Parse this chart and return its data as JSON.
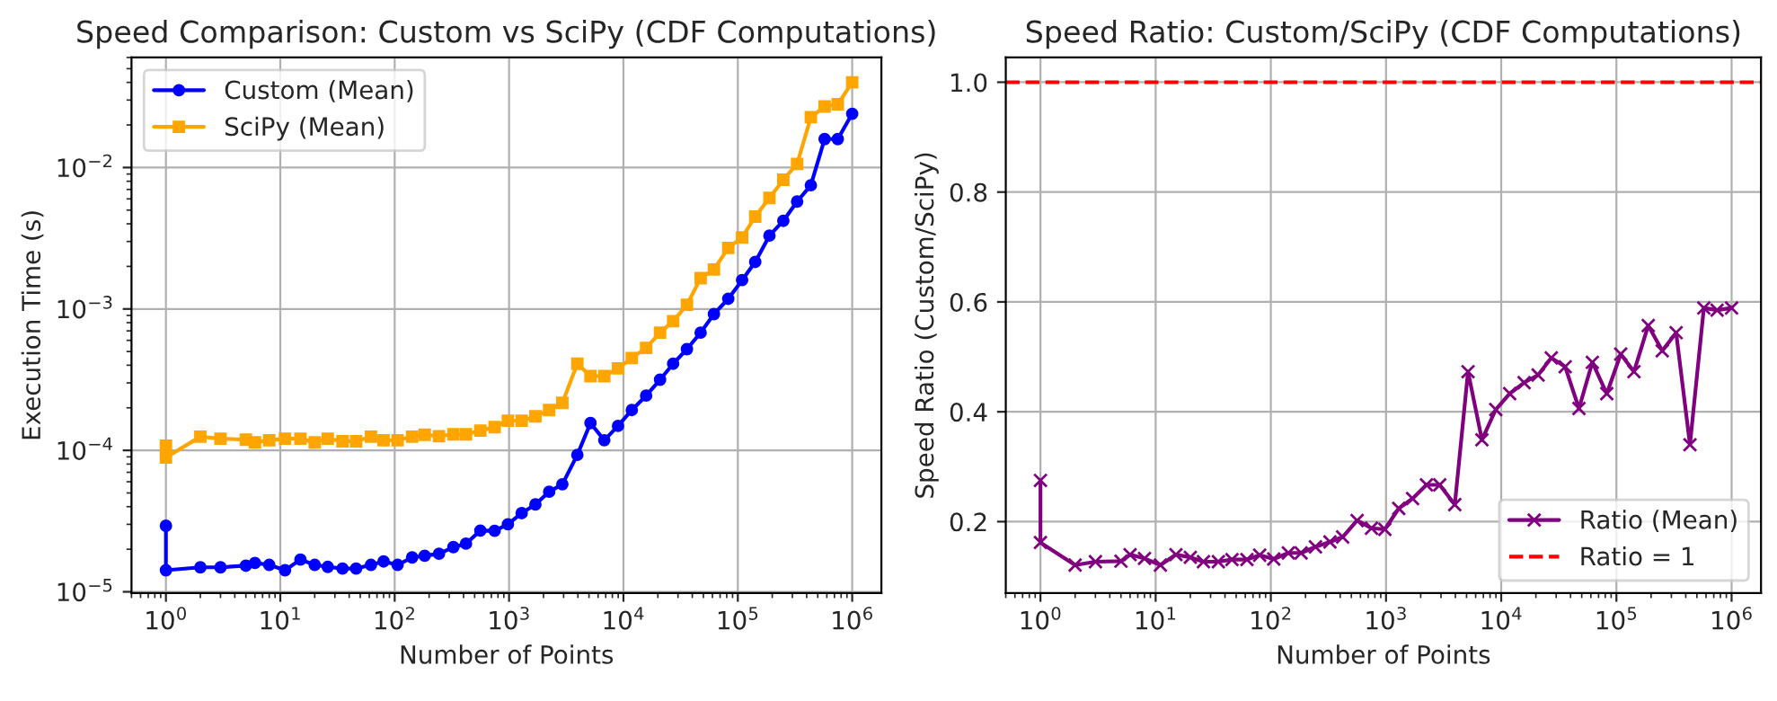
{
  "chart_data": [
    {
      "type": "line",
      "title": "Speed Comparison: Custom vs SciPy (CDF Computations)",
      "xlabel": "Number of Points",
      "ylabel": "Execution Time (s)",
      "log": "xy",
      "grid": true,
      "legend": "top left",
      "x": [
        1,
        1,
        2,
        3,
        5,
        6,
        8,
        11,
        15,
        20,
        26,
        35,
        46,
        62,
        80,
        106,
        142,
        183,
        244,
        326,
        420,
        561,
        748,
        977,
        1289,
        1700,
        2243,
        2924,
        3953,
        5152,
        6800,
        8970,
        11837,
        15800,
        20900,
        27200,
        35900,
        47300,
        61800,
        82500,
        109000,
        142000,
        189000,
        250000,
        330000,
        435000,
        574000,
        748000,
        1000000
      ],
      "series": [
        {
          "name": "Custom (Mean)",
          "color": "#0000ff",
          "marker": "circle",
          "values": [
            2.93e-05,
            1.42e-05,
            1.49e-05,
            1.49e-05,
            1.53e-05,
            1.6e-05,
            1.55e-05,
            1.42e-05,
            1.69e-05,
            1.55e-05,
            1.5e-05,
            1.46e-05,
            1.46e-05,
            1.55e-05,
            1.64e-05,
            1.55e-05,
            1.75e-05,
            1.8e-05,
            1.86e-05,
            2.07e-05,
            2.19e-05,
            2.71e-05,
            2.7e-05,
            3e-05,
            3.6e-05,
            4.15e-05,
            5.1e-05,
            5.76e-05,
            9.3e-05,
            0.000156,
            0.000118,
            0.000149,
            0.000193,
            0.000244,
            0.000316,
            0.00041,
            0.00052,
            0.00068,
            0.00092,
            0.00118,
            0.0016,
            0.00215,
            0.0033,
            0.0042,
            0.00575,
            0.0075,
            0.0159,
            0.0159,
            0.024
          ]
        },
        {
          "name": "SciPy (Mean)",
          "color": "#ffa500",
          "marker": "square",
          "values": [
            0.000108,
            8.9e-05,
            0.000125,
            0.000121,
            0.000119,
            0.000114,
            0.000118,
            0.000121,
            0.000121,
            0.000114,
            0.000121,
            0.000116,
            0.000116,
            0.000125,
            0.000118,
            0.000118,
            0.000125,
            0.000129,
            0.000126,
            0.00013,
            0.00013,
            0.000138,
            0.000146,
            0.000162,
            0.000162,
            0.000174,
            0.000193,
            0.000217,
            0.00041,
            0.000335,
            0.000335,
            0.00038,
            0.00045,
            0.00053,
            0.00068,
            0.00082,
            0.00107,
            0.00165,
            0.0019,
            0.0027,
            0.0032,
            0.0045,
            0.0061,
            0.0082,
            0.0106,
            0.0227,
            0.027,
            0.028,
            0.04
          ]
        }
      ],
      "xlim": [
        0.5,
        1800000.0
      ],
      "ylim": [
        9.8e-06,
        0.06
      ],
      "xticks": [
        {
          "value": 1,
          "label": "10$^{0}$"
        },
        {
          "value": 10,
          "label": "10$^{1}$"
        },
        {
          "value": 100,
          "label": "10$^{2}$"
        },
        {
          "value": 1000,
          "label": "10$^{3}$"
        },
        {
          "value": 10000,
          "label": "10$^{4}$"
        },
        {
          "value": 100000,
          "label": "10$^{5}$"
        },
        {
          "value": 1000000,
          "label": "10$^{6}$"
        }
      ],
      "yticks": [
        {
          "value": 1e-05,
          "label": "10$^{−5}$"
        },
        {
          "value": 0.0001,
          "label": "10$^{−4}$"
        },
        {
          "value": 0.001,
          "label": "10$^{−3}$"
        },
        {
          "value": 0.01,
          "label": "10$^{−2}$"
        }
      ]
    },
    {
      "type": "line",
      "title": "Speed Ratio: Custom/SciPy (CDF Computations)",
      "xlabel": "Number of Points",
      "ylabel": "Speed Ratio (Custom/SciPy)",
      "log": "x",
      "grid": true,
      "legend": "bottom right",
      "x": [
        1,
        1,
        2,
        3,
        5,
        6,
        8,
        11,
        15,
        20,
        26,
        35,
        46,
        62,
        80,
        106,
        142,
        183,
        244,
        326,
        420,
        561,
        748,
        977,
        1289,
        1700,
        2243,
        2924,
        3953,
        5152,
        6800,
        8970,
        11837,
        15800,
        20900,
        27200,
        35900,
        47300,
        61800,
        82500,
        109000,
        142000,
        189000,
        250000,
        330000,
        435000,
        574000,
        748000,
        1000000
      ],
      "series": [
        {
          "name": "Ratio (Mean)",
          "color": "#800080",
          "marker": "cross",
          "values": [
            0.275,
            0.162,
            0.121,
            0.127,
            0.128,
            0.14,
            0.133,
            0.121,
            0.14,
            0.135,
            0.127,
            0.127,
            0.131,
            0.131,
            0.139,
            0.132,
            0.143,
            0.143,
            0.154,
            0.163,
            0.172,
            0.202,
            0.188,
            0.186,
            0.224,
            0.242,
            0.267,
            0.267,
            0.231,
            0.473,
            0.349,
            0.404,
            0.433,
            0.453,
            0.467,
            0.498,
            0.482,
            0.406,
            0.49,
            0.433,
            0.505,
            0.473,
            0.557,
            0.511,
            0.544,
            0.34,
            0.589,
            0.585,
            0.589
          ]
        }
      ],
      "ref_lines": [
        {
          "axis": "y",
          "value": 1,
          "label": "Ratio = 1",
          "color": "#ff0000",
          "line_style": "dashed"
        }
      ],
      "xlim": [
        0.5,
        1800000.0
      ],
      "ylim": [
        0.07,
        1.045
      ],
      "xticks": [
        {
          "value": 1,
          "label": "10$^{0}$"
        },
        {
          "value": 10,
          "label": "10$^{1}$"
        },
        {
          "value": 100,
          "label": "10$^{2}$"
        },
        {
          "value": 1000,
          "label": "10$^{3}$"
        },
        {
          "value": 10000,
          "label": "10$^{4}$"
        },
        {
          "value": 100000,
          "label": "10$^{5}$"
        },
        {
          "value": 1000000,
          "label": "10$^{6}$"
        }
      ],
      "yticks": [
        {
          "value": 0.2,
          "label": "0.2"
        },
        {
          "value": 0.4,
          "label": "0.4"
        },
        {
          "value": 0.6,
          "label": "0.6"
        },
        {
          "value": 0.8,
          "label": "0.8"
        },
        {
          "value": 1.0,
          "label": "1.0"
        }
      ]
    }
  ]
}
